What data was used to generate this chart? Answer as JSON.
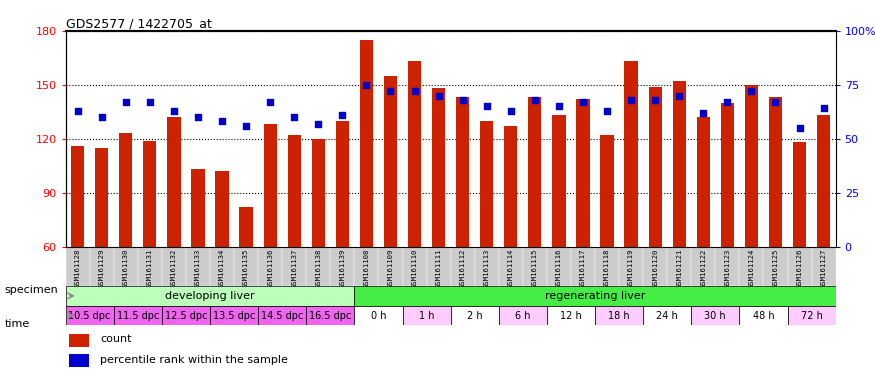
{
  "title": "GDS2577 / 1422705_at",
  "samples": [
    "GSM161128",
    "GSM161129",
    "GSM161130",
    "GSM161131",
    "GSM161132",
    "GSM161133",
    "GSM161134",
    "GSM161135",
    "GSM161136",
    "GSM161137",
    "GSM161138",
    "GSM161139",
    "GSM161108",
    "GSM161109",
    "GSM161110",
    "GSM161111",
    "GSM161112",
    "GSM161113",
    "GSM161114",
    "GSM161115",
    "GSM161116",
    "GSM161117",
    "GSM161118",
    "GSM161119",
    "GSM161120",
    "GSM161121",
    "GSM161122",
    "GSM161123",
    "GSM161124",
    "GSM161125",
    "GSM161126",
    "GSM161127"
  ],
  "counts": [
    116,
    115,
    123,
    119,
    132,
    103,
    102,
    82,
    128,
    122,
    120,
    130,
    175,
    155,
    163,
    148,
    143,
    130,
    127,
    143,
    133,
    142,
    122,
    163,
    149,
    152,
    132,
    140,
    150,
    143,
    118,
    133
  ],
  "percentiles": [
    63,
    60,
    67,
    67,
    63,
    60,
    58,
    56,
    67,
    60,
    57,
    61,
    75,
    72,
    72,
    70,
    68,
    65,
    63,
    68,
    65,
    67,
    63,
    68,
    68,
    70,
    62,
    67,
    72,
    67,
    55,
    64
  ],
  "ylim_left": [
    60,
    180
  ],
  "ylim_right": [
    0,
    100
  ],
  "yticks_left": [
    60,
    90,
    120,
    150,
    180
  ],
  "yticks_right": [
    0,
    25,
    50,
    75,
    100
  ],
  "bar_color": "#cc2200",
  "dot_color": "#0000cc",
  "specimen_groups": [
    {
      "label": "developing liver",
      "start": 0,
      "end": 12,
      "color": "#bbffbb"
    },
    {
      "label": "regenerating liver",
      "start": 12,
      "end": 32,
      "color": "#44ee44"
    }
  ],
  "time_groups": [
    {
      "label": "10.5 dpc",
      "start": 0,
      "end": 2,
      "color": "#ee66ee"
    },
    {
      "label": "11.5 dpc",
      "start": 2,
      "end": 4,
      "color": "#ee66ee"
    },
    {
      "label": "12.5 dpc",
      "start": 4,
      "end": 6,
      "color": "#ee66ee"
    },
    {
      "label": "13.5 dpc",
      "start": 6,
      "end": 8,
      "color": "#ee66ee"
    },
    {
      "label": "14.5 dpc",
      "start": 8,
      "end": 10,
      "color": "#ee66ee"
    },
    {
      "label": "16.5 dpc",
      "start": 10,
      "end": 12,
      "color": "#ee66ee"
    },
    {
      "label": "0 h",
      "start": 12,
      "end": 14,
      "color": "#ffffff"
    },
    {
      "label": "1 h",
      "start": 14,
      "end": 16,
      "color": "#ffccff"
    },
    {
      "label": "2 h",
      "start": 16,
      "end": 18,
      "color": "#ffffff"
    },
    {
      "label": "6 h",
      "start": 18,
      "end": 20,
      "color": "#ffccff"
    },
    {
      "label": "12 h",
      "start": 20,
      "end": 22,
      "color": "#ffffff"
    },
    {
      "label": "18 h",
      "start": 22,
      "end": 24,
      "color": "#ffccff"
    },
    {
      "label": "24 h",
      "start": 24,
      "end": 26,
      "color": "#ffffff"
    },
    {
      "label": "30 h",
      "start": 26,
      "end": 28,
      "color": "#ffccff"
    },
    {
      "label": "48 h",
      "start": 28,
      "end": 30,
      "color": "#ffffff"
    },
    {
      "label": "72 h",
      "start": 30,
      "end": 32,
      "color": "#ffccff"
    }
  ],
  "tick_bg_color": "#cccccc",
  "chart_bg_color": "#ffffff",
  "specimen_label": "specimen",
  "time_label": "time",
  "legend_count_label": "count",
  "legend_percentile_label": "percentile rank within the sample"
}
